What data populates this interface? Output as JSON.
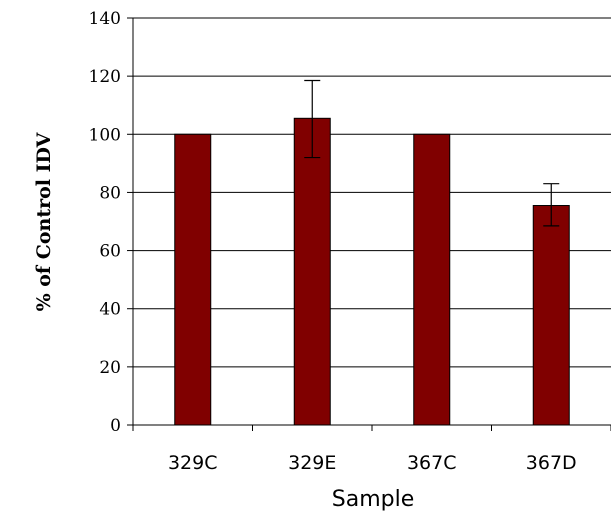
{
  "chart_data": {
    "type": "bar",
    "categories": [
      "329C",
      "329E",
      "367C",
      "367D"
    ],
    "values": [
      100,
      105.5,
      100,
      75.5
    ],
    "error_low": [
      100,
      92,
      100,
      68.5
    ],
    "error_high": [
      100,
      118.5,
      100,
      83
    ],
    "xlabel": "Sample",
    "ylabel": "% of Control IDV",
    "ylim": [
      0,
      140
    ],
    "yticks": [
      "0",
      "20",
      "40",
      "60",
      "80",
      "100",
      "120",
      "140"
    ],
    "grid": true,
    "bar_color": "#800000"
  }
}
